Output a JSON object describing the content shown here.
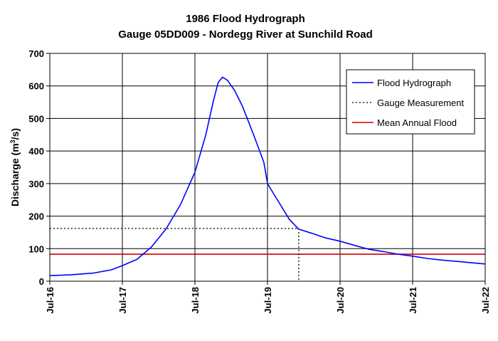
{
  "chart_data": {
    "type": "line",
    "title": "1986 Flood Hydrograph",
    "subtitle": "Gauge 05DD009 - Nordegg River at Sunchild Road",
    "ylabel_prefix": "Discharge (m",
    "ylabel_sup": "3",
    "ylabel_suffix": "/s)",
    "xlabel": "",
    "ylim": [
      0,
      700
    ],
    "yticks": [
      0,
      100,
      200,
      300,
      400,
      500,
      600,
      700
    ],
    "xlim": [
      16,
      22
    ],
    "xticks": [
      {
        "x": 16,
        "label": "Jul-16"
      },
      {
        "x": 17,
        "label": "Jul-17"
      },
      {
        "x": 18,
        "label": "Jul-18"
      },
      {
        "x": 19,
        "label": "Jul-19"
      },
      {
        "x": 20,
        "label": "Jul-20"
      },
      {
        "x": 21,
        "label": "Jul-21"
      },
      {
        "x": 22,
        "label": "Jul-22"
      }
    ],
    "grid": true,
    "legend_position": "top-right",
    "series": [
      {
        "name": "Flood Hydrograph",
        "style": "solid",
        "color": "#0000ff",
        "points": [
          [
            16.0,
            17
          ],
          [
            16.3,
            20
          ],
          [
            16.6,
            25
          ],
          [
            16.85,
            35
          ],
          [
            17.0,
            48
          ],
          [
            17.2,
            67
          ],
          [
            17.4,
            105
          ],
          [
            17.6,
            160
          ],
          [
            17.8,
            235
          ],
          [
            18.0,
            335
          ],
          [
            18.15,
            450
          ],
          [
            18.25,
            550
          ],
          [
            18.32,
            610
          ],
          [
            18.38,
            627
          ],
          [
            18.45,
            617
          ],
          [
            18.55,
            585
          ],
          [
            18.65,
            540
          ],
          [
            18.8,
            455
          ],
          [
            18.95,
            365
          ],
          [
            19.0,
            300
          ],
          [
            19.15,
            245
          ],
          [
            19.3,
            190
          ],
          [
            19.43,
            160
          ],
          [
            19.6,
            148
          ],
          [
            19.8,
            133
          ],
          [
            20.0,
            123
          ],
          [
            20.2,
            110
          ],
          [
            20.4,
            98
          ],
          [
            20.6,
            91
          ],
          [
            20.8,
            83
          ],
          [
            21.0,
            77
          ],
          [
            21.2,
            70
          ],
          [
            21.4,
            65
          ],
          [
            21.6,
            61
          ],
          [
            21.8,
            57
          ],
          [
            22.0,
            53
          ]
        ]
      },
      {
        "name": "Gauge Measurement",
        "style": "dotted",
        "color": "#000000",
        "points": [
          [
            16.0,
            162
          ],
          [
            19.43,
            162
          ],
          [
            19.43,
            0
          ]
        ]
      },
      {
        "name": "Mean Annual Flood",
        "style": "solid",
        "color": "#cc0000",
        "points": [
          [
            16.0,
            83
          ],
          [
            22.0,
            83
          ]
        ]
      }
    ]
  }
}
